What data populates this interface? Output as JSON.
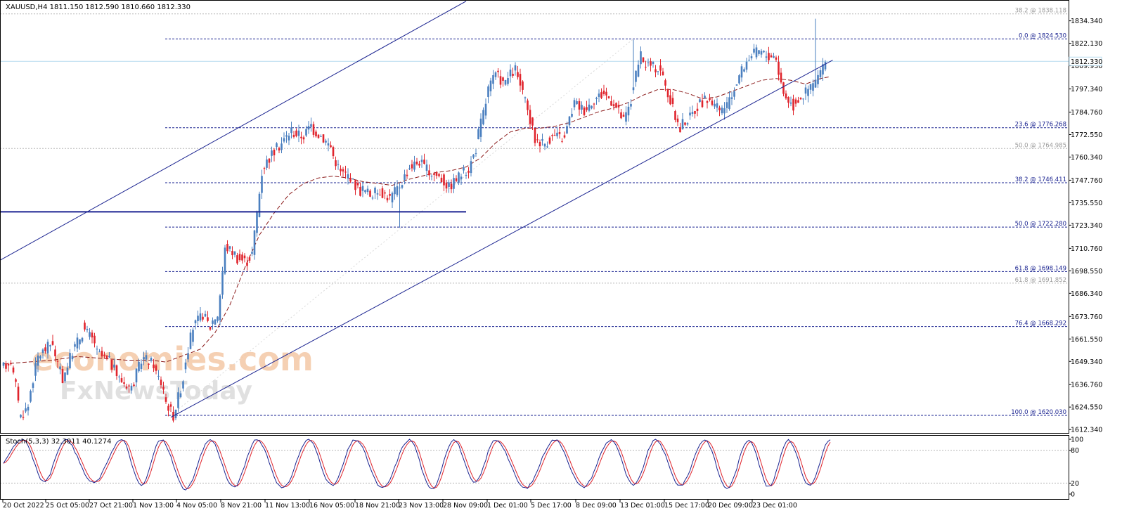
{
  "header": {
    "symbol_line": "XAUUSD,H4  1811.150 1812.590 1810.660 1812.330"
  },
  "stochastic_label": "Stoch(5,3,3) 32.3011 40.1274",
  "watermark": {
    "line1": "economies.com",
    "line2": "FxNewsToday"
  },
  "colors": {
    "bull": "#4a7fbf",
    "bear": "#e0242c",
    "channel": "#1a2390",
    "fib_line": "#1a2390",
    "ma": "#8b1a1a",
    "stoch_main": "#1a2390",
    "stoch_signal": "#e0242c",
    "grid_dotted": "#b8b8b8",
    "current_price_line": "#b7dcef",
    "current_price_bg": "#e8f2f8",
    "axis": "#000000"
  },
  "chart_data": [
    {
      "type": "candlestick",
      "symbol": "XAUUSD",
      "timeframe": "H4",
      "ohlc_header": {
        "open": 1811.15,
        "high": 1812.59,
        "low": 1810.66,
        "close": 1812.33
      },
      "current_price_label": "1812.330",
      "covered_price_label": "1809.930",
      "y_ticks": [
        1834.34,
        1822.13,
        1809.93,
        1797.34,
        1784.76,
        1772.55,
        1760.34,
        1747.76,
        1735.55,
        1723.34,
        1710.76,
        1698.55,
        1686.34,
        1673.76,
        1661.55,
        1649.34,
        1636.76,
        1624.55,
        1612.34
      ],
      "y_tick_labels": [
        "1834.340",
        "1822.130",
        "1809.930",
        "1797.340",
        "1784.760",
        "1772.550",
        "1760.340",
        "1747.760",
        "1735.550",
        "1723.340",
        "1710.760",
        "1698.550",
        "1686.340",
        "1673.760",
        "1661.550",
        "1649.340",
        "1636.760",
        "1624.550",
        "1612.340"
      ],
      "ylim": [
        1610.5,
        1844.5
      ],
      "x_labels": [
        "20 Oct 2022",
        "25 Oct 05:00",
        "27 Oct 21:00",
        "1 Nov 13:00",
        "4 Nov 05:00",
        "8 Nov 21:00",
        "11 Nov 13:00",
        "16 Nov 05:00",
        "18 Nov 21:00",
        "23 Nov 13:00",
        "28 Nov 09:00",
        "1 Dec 01:00",
        "5 Dec 17:00",
        "8 Dec 09:00",
        "13 Dec 01:00",
        "15 Dec 17:00",
        "20 Dec 09:00",
        "23 Dec 01:00"
      ],
      "keypoints": [
        [
          0,
          1645,
          1650
        ],
        [
          4,
          1648,
          1630
        ],
        [
          7,
          1618,
          1625
        ],
        [
          11,
          1628,
          1652
        ],
        [
          15,
          1652,
          1660
        ],
        [
          21,
          1655,
          1640
        ],
        [
          25,
          1640,
          1655
        ],
        [
          29,
          1655,
          1665
        ],
        [
          33,
          1668,
          1660
        ],
        [
          38,
          1655,
          1650
        ],
        [
          43,
          1652,
          1640
        ],
        [
          48,
          1640,
          1635
        ],
        [
          53,
          1635,
          1650
        ],
        [
          57,
          1652,
          1648
        ],
        [
          62,
          1646,
          1635
        ],
        [
          66,
          1630,
          1620
        ],
        [
          70,
          1620,
          1640
        ],
        [
          74,
          1645,
          1668
        ],
        [
          78,
          1668,
          1675
        ],
        [
          82,
          1675,
          1668
        ],
        [
          85,
          1670,
          1675
        ],
        [
          88,
          1674,
          1710
        ],
        [
          91,
          1712,
          1708
        ],
        [
          95,
          1706,
          1704
        ],
        [
          99,
          1702,
          1708
        ],
        [
          102,
          1708,
          1752
        ],
        [
          106,
          1754,
          1762
        ],
        [
          110,
          1762,
          1768
        ],
        [
          114,
          1768,
          1775
        ],
        [
          118,
          1774,
          1772
        ],
        [
          122,
          1770,
          1778
        ],
        [
          126,
          1776,
          1772
        ],
        [
          130,
          1772,
          1766
        ],
        [
          134,
          1764,
          1752
        ],
        [
          138,
          1752,
          1750
        ],
        [
          142,
          1748,
          1742
        ],
        [
          146,
          1744,
          1740
        ],
        [
          150,
          1740,
          1742
        ],
        [
          154,
          1742,
          1738
        ],
        [
          158,
          1738,
          1745
        ],
        [
          162,
          1745,
          1755
        ],
        [
          166,
          1755,
          1758
        ],
        [
          170,
          1758,
          1752
        ],
        [
          174,
          1752,
          1750
        ],
        [
          178,
          1750,
          1744
        ],
        [
          182,
          1744,
          1750
        ],
        [
          186,
          1750,
          1754
        ],
        [
          190,
          1754,
          1765
        ],
        [
          193,
          1768,
          1790
        ],
        [
          197,
          1795,
          1805
        ],
        [
          201,
          1805,
          1800
        ],
        [
          205,
          1802,
          1808
        ],
        [
          209,
          1808,
          1790
        ],
        [
          213,
          1790,
          1770
        ],
        [
          217,
          1770,
          1768
        ],
        [
          221,
          1768,
          1772
        ],
        [
          225,
          1772,
          1770
        ],
        [
          229,
          1772,
          1790
        ],
        [
          233,
          1790,
          1786
        ],
        [
          237,
          1786,
          1792
        ],
        [
          241,
          1792,
          1795
        ],
        [
          245,
          1795,
          1790
        ],
        [
          249,
          1790,
          1780
        ],
        [
          253,
          1780,
          1790
        ],
        [
          256,
          1795,
          1815
        ],
        [
          260,
          1812,
          1810
        ],
        [
          264,
          1810,
          1808
        ],
        [
          268,
          1808,
          1790
        ],
        [
          272,
          1790,
          1775
        ],
        [
          276,
          1778,
          1782
        ],
        [
          280,
          1782,
          1790
        ],
        [
          284,
          1790,
          1792
        ],
        [
          288,
          1792,
          1785
        ],
        [
          292,
          1785,
          1790
        ],
        [
          296,
          1790,
          1805
        ],
        [
          300,
          1805,
          1815
        ],
        [
          304,
          1815,
          1818
        ],
        [
          308,
          1818,
          1815
        ],
        [
          312,
          1816,
          1815
        ],
        [
          315,
          1812,
          1795
        ],
        [
          318,
          1795,
          1788
        ],
        [
          322,
          1790,
          1794
        ],
        [
          326,
          1794,
          1800
        ],
        [
          330,
          1800,
          1808
        ],
        [
          334,
          1808,
          1812
        ]
      ],
      "moving_average": [
        [
          0,
          1648
        ],
        [
          10,
          1649
        ],
        [
          20,
          1650
        ],
        [
          30,
          1652
        ],
        [
          40,
          1651
        ],
        [
          50,
          1650
        ],
        [
          60,
          1650
        ],
        [
          66,
          1649
        ],
        [
          72,
          1652
        ],
        [
          80,
          1656
        ],
        [
          86,
          1665
        ],
        [
          92,
          1680
        ],
        [
          98,
          1700
        ],
        [
          104,
          1718
        ],
        [
          110,
          1730
        ],
        [
          116,
          1740
        ],
        [
          122,
          1746
        ],
        [
          128,
          1749
        ],
        [
          134,
          1750
        ],
        [
          140,
          1749
        ],
        [
          146,
          1747
        ],
        [
          152,
          1746
        ],
        [
          158,
          1745
        ],
        [
          164,
          1748
        ],
        [
          170,
          1750
        ],
        [
          176,
          1752
        ],
        [
          182,
          1753
        ],
        [
          188,
          1755
        ],
        [
          194,
          1760
        ],
        [
          200,
          1768
        ],
        [
          206,
          1774
        ],
        [
          212,
          1776
        ],
        [
          218,
          1776
        ],
        [
          224,
          1777
        ],
        [
          230,
          1779
        ],
        [
          236,
          1782
        ],
        [
          242,
          1785
        ],
        [
          248,
          1787
        ],
        [
          254,
          1790
        ],
        [
          260,
          1794
        ],
        [
          266,
          1797
        ],
        [
          272,
          1797
        ],
        [
          278,
          1795
        ],
        [
          284,
          1792
        ],
        [
          290,
          1793
        ],
        [
          296,
          1796
        ],
        [
          302,
          1799
        ],
        [
          308,
          1802
        ],
        [
          314,
          1803
        ],
        [
          320,
          1802
        ],
        [
          326,
          1800
        ],
        [
          332,
          1803
        ],
        [
          336,
          1804
        ]
      ],
      "channel": {
        "upper": [
          [
            -22,
            1689
          ],
          [
            188,
            1845
          ]
        ],
        "lower": [
          [
            68,
            1619
          ],
          [
            337,
            1813
          ]
        ]
      },
      "horizontal_level": {
        "value": 1730.6,
        "from_bar": -22,
        "to_bar": 188
      },
      "fibonacci_right": [
        {
          "label": "0.0 @ 1824.530",
          "value": 1824.53
        },
        {
          "label": "23.6 @ 1776.268",
          "value": 1776.268
        },
        {
          "label": "38.2 @ 1746.411",
          "value": 1746.411
        },
        {
          "label": "50.0 @ 1722.280",
          "value": 1722.28
        },
        {
          "label": "61.8 @ 1698.149",
          "value": 1698.149
        },
        {
          "label": "76.4 @ 1668.292",
          "value": 1668.292
        },
        {
          "label": "100.0 @ 1620.030",
          "value": 1620.03
        }
      ],
      "fibonacci_gray": [
        {
          "label": "38.2 @ 1838.118",
          "value": 1838.118
        },
        {
          "label": "50.0 @ 1764.985",
          "value": 1764.985
        },
        {
          "label": "61.8 @ 1691.852",
          "value": 1691.852
        }
      ]
    },
    {
      "type": "line",
      "indicator": "Stochastic",
      "params": "5,3,3",
      "main_value": 32.3011,
      "signal_value": 40.1274,
      "y_ticks": [
        100,
        80,
        20,
        0
      ],
      "levels": [
        80,
        20
      ],
      "ylim": [
        0,
        100
      ],
      "cycle_centers": [
        8,
        25,
        48,
        64,
        84,
        103,
        124,
        143,
        165,
        183,
        200,
        224,
        247,
        265,
        285,
        303,
        319,
        336
      ],
      "cycle_lows": [
        22,
        20,
        15,
        8,
        12,
        10,
        15,
        10,
        8,
        20,
        10,
        12,
        15,
        15,
        10,
        12,
        15
      ]
    }
  ]
}
